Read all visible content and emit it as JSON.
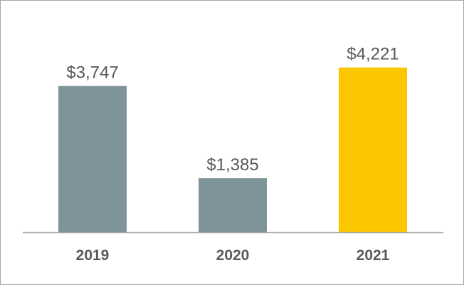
{
  "chart_data": {
    "type": "bar",
    "categories": [
      "2019",
      "2020",
      "2021"
    ],
    "values": [
      3747,
      1385,
      4221
    ],
    "value_labels": [
      "$3,747",
      "$1,385",
      "$4,221"
    ],
    "colors": [
      "#7f9498",
      "#7f9498",
      "#fdc700"
    ],
    "axis_color": "#a6a6a6",
    "text_color": "#595959",
    "ylim": [
      0,
      4800
    ],
    "grid": false,
    "legend": "none",
    "title": "",
    "xlabel": "",
    "ylabel": ""
  }
}
